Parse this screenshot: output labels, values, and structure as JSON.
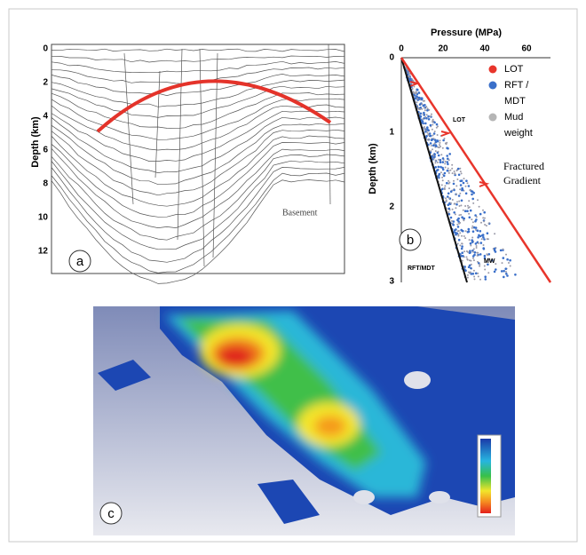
{
  "panel_a": {
    "label": "a",
    "y_title": "Depth (km)",
    "y_ticks": [
      "0",
      "2",
      "4",
      "6",
      "8",
      "10",
      "12"
    ],
    "annotation": "Basement"
  },
  "panel_b": {
    "label": "b",
    "x_title": "Pressure (MPa)",
    "x_ticks": [
      "0",
      "20",
      "40",
      "60"
    ],
    "y_title": "Depth (km)",
    "y_ticks": [
      "0",
      "1",
      "2",
      "3"
    ],
    "legend": [
      {
        "lines": [
          "LOT"
        ],
        "color": "#e8352b"
      },
      {
        "lines": [
          "RFT /",
          "MDT"
        ],
        "color": "#3a6fc9"
      },
      {
        "lines": [
          "Mud",
          "weight"
        ],
        "color": "#b5b5b5"
      }
    ],
    "gradient_label": [
      "Fractured",
      "Gradient"
    ],
    "annotations": [
      "LOT",
      "RFT/MDT",
      "MW"
    ]
  },
  "panel_c": {
    "label": "c"
  }
}
